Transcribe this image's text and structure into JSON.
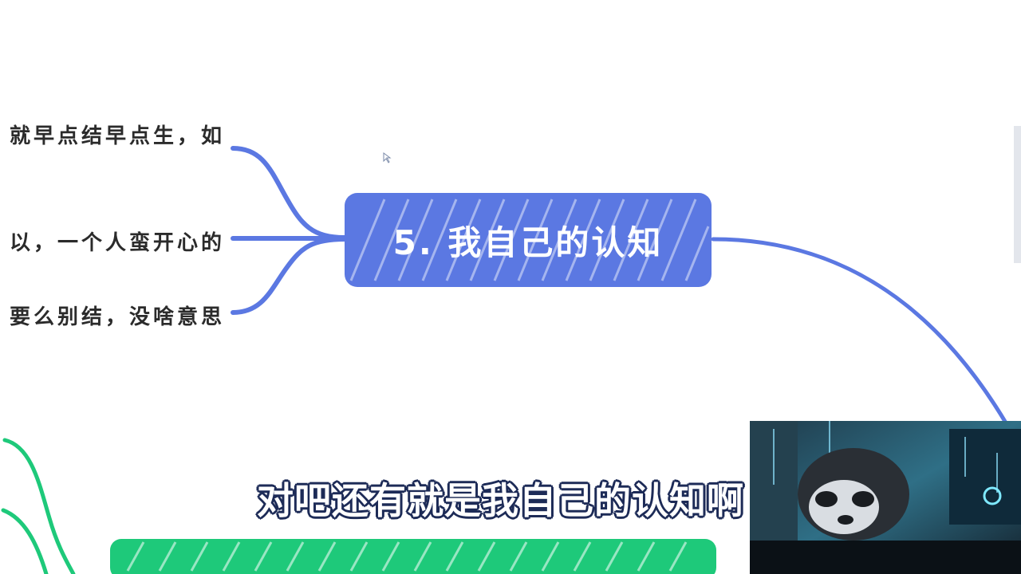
{
  "mindmap": {
    "central_node": {
      "label": "5. 我自己的认知",
      "color": "#5b78e2"
    },
    "branches": [
      {
        "text": "就早点结早点生，如"
      },
      {
        "text": "以，一个人蛮开心的"
      },
      {
        "text": "要么别结，没啥意思"
      }
    ],
    "next_node_color": "#1ec97a",
    "connector_color": "#5b78e2"
  },
  "video_overlay": {
    "subtitle": "对吧还有就是我自己的认知啊"
  }
}
